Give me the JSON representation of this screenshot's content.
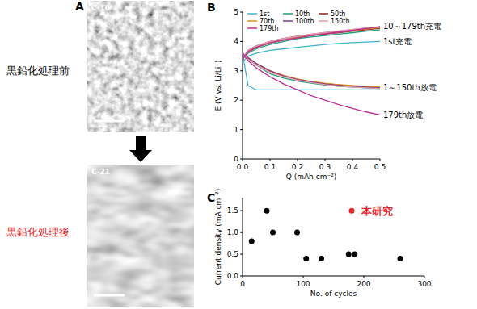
{
  "panel_a": {
    "label": "A",
    "top_image": {
      "label": "C-10",
      "caption": "黒鉛化処理前"
    },
    "bottom_image": {
      "label": "C-21",
      "caption": "黒鉛化処理後"
    }
  },
  "chart_data": [
    {
      "type": "line",
      "title": "B",
      "x_label": "Q (mAh cm⁻²)",
      "y_label": "E (V vs. Li/Li⁺)",
      "x": [
        0,
        0.02,
        0.05,
        0.1,
        0.15,
        0.2,
        0.25,
        0.3,
        0.35,
        0.4,
        0.45,
        0.5
      ],
      "series": [
        {
          "name": "1st",
          "color": "#3cb4cc",
          "values": [
            3.3,
            3.5,
            3.6,
            3.7,
            3.75,
            3.8,
            3.85,
            3.9,
            3.93,
            3.96,
            3.98,
            4.0
          ],
          "discharge": [
            3.6,
            2.5,
            2.35,
            2.35,
            2.35,
            2.35,
            2.35,
            2.35,
            2.35,
            2.35,
            2.35,
            2.35
          ]
        },
        {
          "name": "10th",
          "color": "#1a9e7a",
          "values": [
            3.4,
            3.6,
            3.75,
            3.9,
            4.0,
            4.1,
            4.15,
            4.2,
            4.25,
            4.3,
            4.35,
            4.4
          ],
          "discharge": [
            3.6,
            3.4,
            3.2,
            2.9,
            2.75,
            2.65,
            2.58,
            2.52,
            2.48,
            2.45,
            2.42,
            2.4
          ]
        },
        {
          "name": "50th",
          "color": "#8b1c1c",
          "values": [
            3.4,
            3.65,
            3.8,
            3.95,
            4.05,
            4.15,
            4.2,
            4.25,
            4.3,
            4.35,
            4.4,
            4.45
          ],
          "discharge": [
            3.6,
            3.45,
            3.25,
            3.0,
            2.82,
            2.7,
            2.62,
            2.56,
            2.52,
            2.48,
            2.45,
            2.43
          ]
        },
        {
          "name": "70th",
          "color": "#e08a1e",
          "values": [
            3.4,
            3.65,
            3.8,
            3.95,
            4.05,
            4.15,
            4.2,
            4.27,
            4.32,
            4.37,
            4.42,
            4.47
          ],
          "discharge": [
            3.6,
            3.45,
            3.25,
            3.0,
            2.85,
            2.72,
            2.64,
            2.58,
            2.53,
            2.5,
            2.47,
            2.45
          ]
        },
        {
          "name": "100th",
          "color": "#7a3c8c",
          "values": [
            3.4,
            3.7,
            3.85,
            4.0,
            4.1,
            4.18,
            4.24,
            4.3,
            4.35,
            4.4,
            4.45,
            4.5
          ],
          "discharge": [
            3.6,
            3.45,
            3.25,
            3.0,
            2.82,
            2.7,
            2.62,
            2.55,
            2.5,
            2.47,
            2.44,
            2.42
          ]
        },
        {
          "name": "150th",
          "color": "#e89aa8",
          "values": [
            3.4,
            3.7,
            3.85,
            4.0,
            4.1,
            4.18,
            4.25,
            4.3,
            4.36,
            4.41,
            4.46,
            4.5
          ],
          "discharge": [
            3.6,
            3.4,
            3.2,
            2.95,
            2.8,
            2.68,
            2.6,
            2.53,
            2.48,
            2.45,
            2.42,
            2.4
          ]
        },
        {
          "name": "179th",
          "color": "#c0309a",
          "values": [
            3.4,
            3.65,
            3.8,
            3.95,
            4.05,
            4.12,
            4.2,
            4.26,
            4.32,
            4.38,
            4.44,
            4.5
          ],
          "discharge": [
            3.6,
            3.35,
            3.1,
            2.8,
            2.55,
            2.35,
            2.15,
            2.0,
            1.85,
            1.72,
            1.6,
            1.5
          ]
        }
      ],
      "xlim": [
        0,
        0.5
      ],
      "xticks": [
        {
          "value": 0,
          "label": "0.0"
        },
        {
          "value": 0.1,
          "label": "0.1"
        },
        {
          "value": 0.2,
          "label": "0.2"
        },
        {
          "value": 0.3,
          "label": "0.3"
        },
        {
          "value": 0.4,
          "label": "0.4"
        },
        {
          "value": 0.5,
          "label": "0.5"
        }
      ],
      "ylim": [
        0,
        5
      ],
      "yticks": [
        0,
        1,
        2,
        3,
        4,
        5
      ],
      "legend": "top",
      "annotations": [
        "10～179th充電",
        "1st充電",
        "1～150th放電",
        "179th放電"
      ]
    },
    {
      "type": "scatter",
      "title": "C",
      "x_label": "No. of cycles",
      "y_label": "Current density (mA cm⁻²)",
      "series": [
        {
          "color": "#000000",
          "marker": "circle",
          "x": [
            15,
            40,
            50,
            90,
            105,
            130,
            175,
            185,
            260
          ],
          "values": [
            0.8,
            1.5,
            1.0,
            1.0,
            0.4,
            0.4,
            0.5,
            0.5,
            0.4
          ]
        },
        {
          "name": "本研究",
          "color": "#e8262a",
          "marker": "circle",
          "x": [
            180
          ],
          "values": [
            1.5
          ]
        }
      ],
      "xlim": [
        0,
        300
      ],
      "xticks": [
        0,
        100,
        200,
        300
      ],
      "ylim": [
        0,
        1.8
      ],
      "yticks": [
        {
          "value": 0,
          "label": "0.0"
        },
        {
          "value": 0.5,
          "label": "0.5"
        },
        {
          "value": 1.0,
          "label": "1.0"
        },
        {
          "value": 1.5,
          "label": "1.5"
        }
      ]
    }
  ]
}
